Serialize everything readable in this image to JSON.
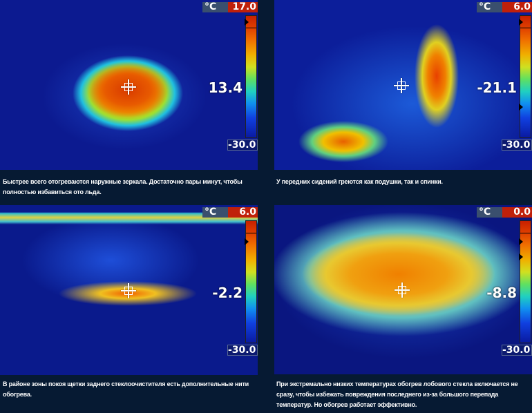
{
  "panels": [
    {
      "unit": "°C",
      "max": "17.0",
      "min": "-30.0",
      "temp": "13.4",
      "caption": "Быстрее всего отогреваются наружные зеркала. Достаточно пары минут, чтобы полностью избавиться ото льда."
    },
    {
      "unit": "°C",
      "max": "6.0",
      "min": "-30.0",
      "temp": "-21.1",
      "caption": "У передних сидений греются как подушки, так и спинки."
    },
    {
      "unit": "°C",
      "max": "6.0",
      "min": "-30.0",
      "temp": "-2.2",
      "caption": "В районе зоны покоя щетки заднего стеклоочистителя есть дополнительные нити обогрева."
    },
    {
      "unit": "°C",
      "max": "0.0",
      "min": "-30.0",
      "temp": "-8.8",
      "caption": "При экстремально низких температурах обогрев лобового стекла включается не сразу, чтобы избежать повреждения последнего из-за большого перепада температур. Но обогрев работает эффективно."
    }
  ],
  "colors": {
    "background": "#061a33",
    "max_box": "#c0200a",
    "unit_box": "#3a4f6e"
  },
  "icons": {
    "crosshair": "crosshair-icon",
    "scale_marker": "triangle-marker-icon"
  }
}
